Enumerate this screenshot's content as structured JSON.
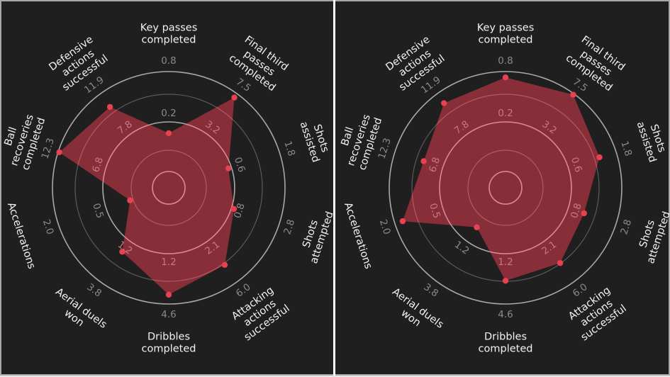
{
  "colors": {
    "background": "#1f1f1f",
    "fill": "#8e2f3a",
    "fill_opacity": 0.95,
    "marker": "#e8414f",
    "ring_bright": "#a9a9a9",
    "ring_dim": "#5a5a5a",
    "ring_on_fill_bright": "#d88a92",
    "ring_on_fill_dim": "#b05a66",
    "label": "#f2f2f2",
    "tick_outside": "#8a8a8a",
    "tick_inside": "#c27a84"
  },
  "chart_data": [
    {
      "type": "radar",
      "title": "",
      "axes": [
        "Key passes completed",
        "Final third passes completed",
        "Shots assisted",
        "Shots attempted",
        "Attacking actions successful",
        "Dribbles completed",
        "Aerial duels won",
        "Accelerations",
        "Ball recoveries completed",
        "Defensive actions successful"
      ],
      "axis_labels_lines": [
        [
          "Key passes",
          "completed"
        ],
        [
          "Final third",
          "passes",
          "completed"
        ],
        [
          "Shots",
          "assisted"
        ],
        [
          "Shots",
          "attempted"
        ],
        [
          "Attacking",
          "actions",
          "successful"
        ],
        [
          "Dribbles",
          "completed"
        ],
        [
          "Aerial duels",
          "won"
        ],
        [
          "Accelerations"
        ],
        [
          "Ball",
          "recoveries",
          "completed"
        ],
        [
          "Defensive",
          "actions",
          "successful"
        ]
      ],
      "inner_ring_ticks": [
        "0.2",
        "3.2",
        "0.6",
        "0.8",
        "2.1",
        "1.2",
        "1.2",
        "0.5",
        "6.8",
        "7.8"
      ],
      "outer_ring_ticks": [
        "0.8",
        "7.5",
        "1.8",
        "2.8",
        "6.0",
        "4.6",
        "3.8",
        "2.0",
        "12.3",
        "11.9"
      ],
      "normalized_radius": [
        0.47,
        0.96,
        0.54,
        0.59,
        0.82,
        0.92,
        0.68,
        0.35,
        0.99,
        0.86
      ],
      "estimated_values": [
        0.41,
        7.3,
        0.66,
        1.0,
        4.4,
        3.9,
        1.9,
        0.5,
        12.2,
        10.0
      ]
    },
    {
      "type": "radar",
      "title": "",
      "axes": [
        "Key passes completed",
        "Final third passes completed",
        "Shots assisted",
        "Shots attempted",
        "Attacking actions successful",
        "Dribbles completed",
        "Aerial duels won",
        "Accelerations",
        "Ball recoveries completed",
        "Defensive actions successful"
      ],
      "axis_labels_lines": [
        [
          "Key passes",
          "completed"
        ],
        [
          "Final third",
          "passes",
          "completed"
        ],
        [
          "Shots",
          "assisted"
        ],
        [
          "Shots",
          "attempted"
        ],
        [
          "Attacking",
          "actions",
          "successful"
        ],
        [
          "Dribbles",
          "completed"
        ],
        [
          "Aerial duels",
          "won"
        ],
        [
          "Accelerations"
        ],
        [
          "Ball",
          "recoveries",
          "completed"
        ],
        [
          "Defensive",
          "actions",
          "successful"
        ]
      ],
      "inner_ring_ticks": [
        "0.2",
        "3.2",
        "0.6",
        "0.8",
        "2.1",
        "1.2",
        "1.2",
        "0.5",
        "6.8",
        "7.8"
      ],
      "outer_ring_ticks": [
        "0.8",
        "7.5",
        "1.8",
        "2.8",
        "6.0",
        "4.6",
        "3.8",
        "2.0",
        "12.3",
        "11.9"
      ],
      "normalized_radius": [
        0.95,
        0.99,
        0.85,
        0.71,
        0.8,
        0.8,
        0.42,
        0.93,
        0.74,
        0.9
      ],
      "estimated_values": [
        0.75,
        7.5,
        1.3,
        1.6,
        4.2,
        3.3,
        0.8,
        1.8,
        7.8,
        10.6
      ]
    }
  ],
  "geometry": {
    "centers": [
      [
        238,
        265
      ],
      [
        713,
        265
      ]
    ],
    "ring_radii": [
      23,
      53,
      93,
      132,
      164
    ],
    "inner_label_radius": 105,
    "outer_label_radius": 179,
    "axis_label_radius": 218
  }
}
